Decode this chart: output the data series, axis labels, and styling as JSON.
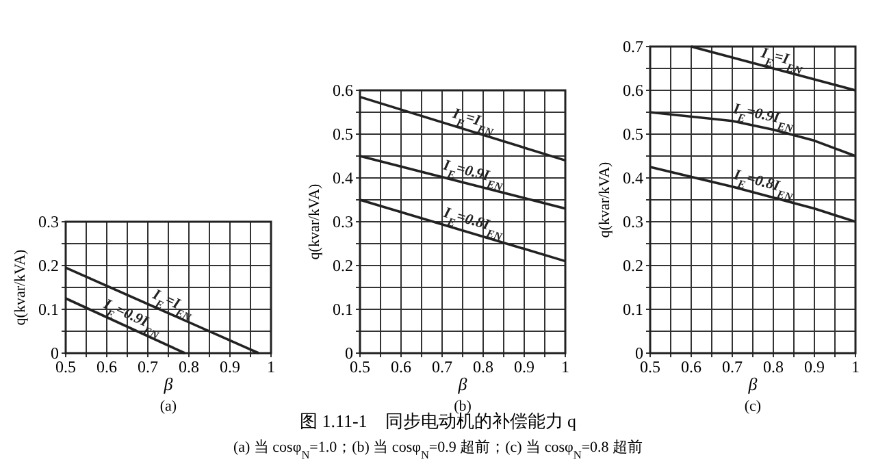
{
  "chart_data": [
    {
      "type": "line",
      "title": "(a)",
      "xlabel": "β",
      "ylabel": "q(kvar/kVA)",
      "xlim": [
        0.5,
        1
      ],
      "ylim": [
        0,
        0.3
      ],
      "grid": true,
      "marker": "none",
      "line_style": "solid",
      "xticks": [
        0.5,
        {
          "value": 0.55,
          "label": null
        },
        0.6,
        {
          "value": 0.65,
          "label": null
        },
        0.7,
        {
          "value": 0.75,
          "label": null
        },
        0.8,
        {
          "value": 0.85,
          "label": null
        },
        0.9,
        {
          "value": 0.95,
          "label": null
        },
        1
      ],
      "yticks": [
        0,
        {
          "value": 0.05,
          "label": null
        },
        0.1,
        {
          "value": 0.15,
          "label": null
        },
        0.2,
        {
          "value": 0.25,
          "label": null
        },
        0.3
      ],
      "series": [
        {
          "name": "I$_{E}$=I$_{EN}$",
          "color": "#222222",
          "x": [
            0.5,
            0.97
          ],
          "values": [
            0.195,
            0
          ]
        },
        {
          "name": "I$_{E}$=0.9I$_{EN}$",
          "color": "#222222",
          "x": [
            0.5,
            0.79
          ],
          "values": [
            0.125,
            0
          ]
        }
      ],
      "annotations": [
        "图 1.11-1　同步电动机的补偿能力 q",
        "(a) 当 cosφ$_{N}$=1.0；(b) 当 cosφ$_{N}$=0.9 超前；(c) 当 cosφ$_{N}$=0.8 超前"
      ]
    },
    {
      "type": "line",
      "title": "(b)",
      "xlabel": "β",
      "ylabel": "q(kvar/kVA)",
      "xlim": [
        0.5,
        1
      ],
      "ylim": [
        0,
        0.6
      ],
      "grid": true,
      "marker": "none",
      "line_style": "solid",
      "xticks": [
        0.5,
        {
          "value": 0.55,
          "label": null
        },
        0.6,
        {
          "value": 0.65,
          "label": null
        },
        0.7,
        {
          "value": 0.75,
          "label": null
        },
        0.8,
        {
          "value": 0.85,
          "label": null
        },
        0.9,
        {
          "value": 0.95,
          "label": null
        },
        1
      ],
      "yticks": [
        0,
        {
          "value": 0.05,
          "label": null
        },
        0.1,
        {
          "value": 0.15,
          "label": null
        },
        0.2,
        {
          "value": 0.25,
          "label": null
        },
        0.3,
        {
          "value": 0.35,
          "label": null
        },
        0.4,
        {
          "value": 0.45,
          "label": null
        },
        0.5,
        {
          "value": 0.55,
          "label": null
        },
        0.6
      ],
      "series": [
        {
          "name": "I$_{E}$=I$_{EN}$",
          "color": "#222222",
          "x": [
            0.5,
            1
          ],
          "values": [
            0.585,
            0.44
          ]
        },
        {
          "name": "I$_{E}$=0.9I$_{EN}$",
          "color": "#222222",
          "x": [
            0.5,
            1
          ],
          "values": [
            0.45,
            0.33
          ]
        },
        {
          "name": "I$_{E}$=0.8I$_{EN}$",
          "color": "#222222",
          "x": [
            0.5,
            1
          ],
          "values": [
            0.35,
            0.21
          ]
        }
      ]
    },
    {
      "type": "line",
      "title": "(c)",
      "xlabel": "β",
      "ylabel": "q(kvar/kVA)",
      "xlim": [
        0.5,
        1
      ],
      "ylim": [
        0,
        0.7
      ],
      "grid": true,
      "marker": "none",
      "line_style": "solid",
      "xticks": [
        0.5,
        {
          "value": 0.55,
          "label": null
        },
        0.6,
        {
          "value": 0.65,
          "label": null
        },
        0.7,
        {
          "value": 0.75,
          "label": null
        },
        0.8,
        {
          "value": 0.85,
          "label": null
        },
        0.9,
        {
          "value": 0.95,
          "label": null
        },
        1
      ],
      "yticks": [
        0,
        {
          "value": 0.05,
          "label": null
        },
        0.1,
        {
          "value": 0.15,
          "label": null
        },
        0.2,
        {
          "value": 0.25,
          "label": null
        },
        0.3,
        {
          "value": 0.35,
          "label": null
        },
        0.4,
        {
          "value": 0.45,
          "label": null
        },
        0.5,
        {
          "value": 0.55,
          "label": null
        },
        0.6,
        {
          "value": 0.65,
          "label": null
        },
        0.7
      ],
      "series": [
        {
          "name": "I$_{E}$=I$_{EN}$",
          "color": "#222222",
          "x": [
            0.6,
            1
          ],
          "values": [
            0.7,
            0.6
          ]
        },
        {
          "name": "I$_{E}$=0.9I$_{EN}$",
          "color": "#222222",
          "x": [
            0.5,
            0.7,
            0.8,
            0.9,
            1
          ],
          "values": [
            0.55,
            0.53,
            0.51,
            0.485,
            0.45
          ]
        },
        {
          "name": "I$_{E}$=0.8I$_{EN}$",
          "color": "#222222",
          "x": [
            0.5,
            0.7,
            0.8,
            0.9,
            1
          ],
          "values": [
            0.425,
            0.38,
            0.355,
            0.33,
            0.3
          ]
        }
      ]
    }
  ]
}
